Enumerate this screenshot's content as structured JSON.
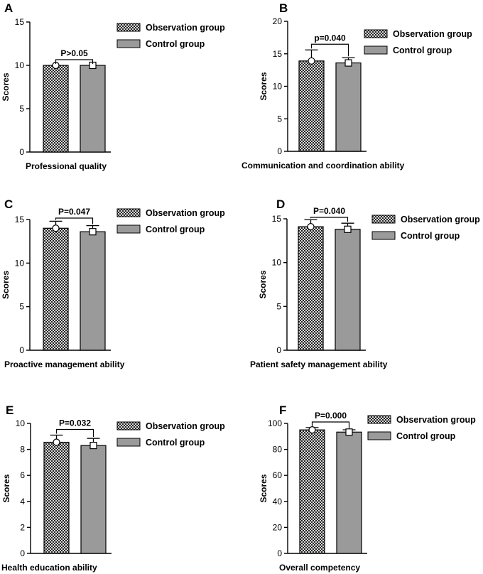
{
  "chart_data": [
    {
      "type": "bar",
      "panel": "A",
      "categories": [
        "Observation group",
        "Control group"
      ],
      "values": [
        10.0,
        10.0
      ],
      "error": [
        0.0,
        0.0
      ],
      "ylim": [
        0,
        15
      ],
      "yticks": [
        0,
        5,
        10,
        15
      ],
      "ylabel": "Scores",
      "xlabel": "Professional quality",
      "pvalue": "P>0.05",
      "legend": [
        "Observation group",
        "Control group"
      ]
    },
    {
      "type": "bar",
      "panel": "B",
      "categories": [
        "Observation group",
        "Control group"
      ],
      "values": [
        13.9,
        13.6
      ],
      "error": [
        1.7,
        0.8
      ],
      "ylim": [
        0,
        20
      ],
      "yticks": [
        0,
        5,
        10,
        15,
        20
      ],
      "ylabel": "Scores",
      "xlabel": "Communication and coordination ability",
      "pvalue": "p=0.040",
      "legend": [
        "Observation group",
        "Control group"
      ]
    },
    {
      "type": "bar",
      "panel": "C",
      "categories": [
        "Observation group",
        "Control group"
      ],
      "values": [
        14.0,
        13.6
      ],
      "error": [
        0.8,
        0.7
      ],
      "ylim": [
        0,
        15
      ],
      "yticks": [
        0,
        5,
        10,
        15
      ],
      "ylabel": "Scores",
      "xlabel": "Proactive management ability",
      "pvalue": "P=0.047",
      "legend": [
        "Observation group",
        "Control group"
      ]
    },
    {
      "type": "bar",
      "panel": "D",
      "categories": [
        "Observation group",
        "Control group"
      ],
      "values": [
        14.1,
        13.8
      ],
      "error": [
        0.8,
        0.7
      ],
      "ylim": [
        0,
        15
      ],
      "yticks": [
        0,
        5,
        10,
        15
      ],
      "ylabel": "Scores",
      "xlabel": "Patient safety management ability",
      "pvalue": "P=0.040",
      "legend": [
        "Observation group",
        "Control group"
      ]
    },
    {
      "type": "bar",
      "panel": "E",
      "categories": [
        "Observation group",
        "Control group"
      ],
      "values": [
        8.55,
        8.3
      ],
      "error": [
        0.55,
        0.55
      ],
      "ylim": [
        0,
        10
      ],
      "yticks": [
        0,
        2,
        4,
        6,
        8,
        10
      ],
      "ylabel": "Scores",
      "xlabel": "Health education ability",
      "pvalue": "P=0.032",
      "legend": [
        "Observation group",
        "Control group"
      ]
    },
    {
      "type": "bar",
      "panel": "F",
      "categories": [
        "Observation group",
        "Control group"
      ],
      "values": [
        95.0,
        93.3
      ],
      "error": [
        1.8,
        1.8
      ],
      "ylim": [
        0,
        100
      ],
      "yticks": [
        0,
        20,
        40,
        60,
        80,
        100
      ],
      "ylabel": "Scores",
      "xlabel": "Overall competency",
      "pvalue": "P=0.000",
      "legend": [
        "Observation group",
        "Control group"
      ]
    }
  ],
  "colors": {
    "observation_fill": "#2b2b2b",
    "observation_pattern_bg": "#d4d4d4",
    "control_fill": "#9a9a9a",
    "axis": "#000000"
  }
}
